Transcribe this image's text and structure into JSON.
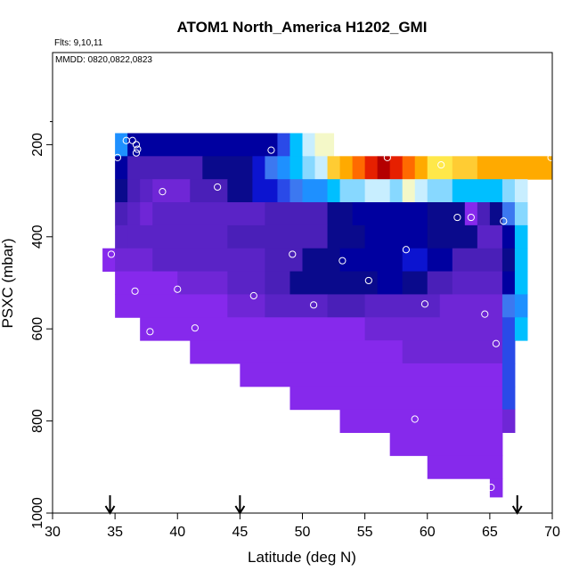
{
  "chart_data": {
    "type": "heatmap",
    "title": "ATOM1 North_America H1202_GMI",
    "annotations": [
      "Flts: 9,10,11",
      "MMDD: 0820,0822,0823"
    ],
    "xlabel": "Latitude (deg N)",
    "ylabel": "PSXC (mbar)",
    "xlim": [
      30,
      70
    ],
    "ylim": [
      1000,
      0
    ],
    "xticks": [
      30,
      35,
      40,
      45,
      50,
      55,
      60,
      65,
      70
    ],
    "yticks": [
      200,
      400,
      600,
      800,
      1000
    ],
    "cell_width_deg": 1,
    "cell_height_mbar": 50,
    "colors": {
      "violet": "#8629ec",
      "purple": "#6f26d6",
      "indigo": "#5a23c6",
      "deep_indigo": "#4a1fb8",
      "dark_navy": "#0a0a8c",
      "navy": "#0000a0",
      "blue": "#0c14d0",
      "bright_blue": "#2a4ae8",
      "azure": "#1e90ff",
      "royal": "#3c78f0",
      "sky": "#00bfff",
      "light_sky": "#87d8ff",
      "pale_blue": "#c8eeff",
      "cream": "#f4f8c8",
      "yellow": "#ffe84a",
      "gold": "#ffcc33",
      "orange": "#ffaa00",
      "dark_orange": "#ff6a00",
      "red": "#e62000",
      "dark_red": "#b40000"
    },
    "cell_rows": [
      {
        "pres_top": 175,
        "pres_bottom": 225,
        "segments": [
          {
            "lat_start": 35,
            "lat_end": 36,
            "color": "azure"
          },
          {
            "lat_start": 36,
            "lat_end": 48,
            "color": "navy"
          },
          {
            "lat_start": 48,
            "lat_end": 49,
            "color": "bright_blue"
          },
          {
            "lat_start": 49,
            "lat_end": 50,
            "color": "sky"
          },
          {
            "lat_start": 50,
            "lat_end": 51,
            "color": "pale_blue"
          },
          {
            "lat_start": 51,
            "lat_end": 52.5,
            "color": "cream"
          }
        ]
      },
      {
        "pres_top": 225,
        "pres_bottom": 275,
        "segments": [
          {
            "lat_start": 35,
            "lat_end": 36,
            "color": "navy"
          },
          {
            "lat_start": 36,
            "lat_end": 42,
            "color": "deep_indigo"
          },
          {
            "lat_start": 42,
            "lat_end": 46,
            "color": "dark_navy"
          },
          {
            "lat_start": 46,
            "lat_end": 47,
            "color": "blue"
          },
          {
            "lat_start": 47,
            "lat_end": 48,
            "color": "royal"
          },
          {
            "lat_start": 48,
            "lat_end": 49,
            "color": "azure"
          },
          {
            "lat_start": 49,
            "lat_end": 50,
            "color": "sky"
          },
          {
            "lat_start": 50,
            "lat_end": 51,
            "color": "light_sky"
          },
          {
            "lat_start": 51,
            "lat_end": 52,
            "color": "pale_blue"
          },
          {
            "lat_start": 52,
            "lat_end": 53,
            "color": "gold"
          },
          {
            "lat_start": 53,
            "lat_end": 54,
            "color": "orange"
          },
          {
            "lat_start": 54,
            "lat_end": 55,
            "color": "dark_orange"
          },
          {
            "lat_start": 55,
            "lat_end": 56,
            "color": "red"
          },
          {
            "lat_start": 56,
            "lat_end": 57,
            "color": "dark_red"
          },
          {
            "lat_start": 57,
            "lat_end": 58,
            "color": "red"
          },
          {
            "lat_start": 58,
            "lat_end": 59,
            "color": "dark_orange"
          },
          {
            "lat_start": 59,
            "lat_end": 60,
            "color": "orange"
          },
          {
            "lat_start": 60,
            "lat_end": 62,
            "color": "yellow"
          },
          {
            "lat_start": 62,
            "lat_end": 64,
            "color": "gold"
          },
          {
            "lat_start": 64,
            "lat_end": 70,
            "color": "orange"
          }
        ]
      },
      {
        "pres_top": 275,
        "pres_bottom": 325,
        "segments": [
          {
            "lat_start": 35,
            "lat_end": 36,
            "color": "dark_navy"
          },
          {
            "lat_start": 36,
            "lat_end": 37,
            "color": "deep_indigo"
          },
          {
            "lat_start": 37,
            "lat_end": 38,
            "color": "indigo"
          },
          {
            "lat_start": 38,
            "lat_end": 41,
            "color": "purple"
          },
          {
            "lat_start": 41,
            "lat_end": 44,
            "color": "deep_indigo"
          },
          {
            "lat_start": 44,
            "lat_end": 46,
            "color": "dark_navy"
          },
          {
            "lat_start": 46,
            "lat_end": 48,
            "color": "blue"
          },
          {
            "lat_start": 48,
            "lat_end": 49,
            "color": "bright_blue"
          },
          {
            "lat_start": 49,
            "lat_end": 50,
            "color": "royal"
          },
          {
            "lat_start": 50,
            "lat_end": 52,
            "color": "azure"
          },
          {
            "lat_start": 52,
            "lat_end": 53,
            "color": "sky"
          },
          {
            "lat_start": 53,
            "lat_end": 55,
            "color": "light_sky"
          },
          {
            "lat_start": 55,
            "lat_end": 57,
            "color": "pale_blue"
          },
          {
            "lat_start": 57,
            "lat_end": 58,
            "color": "light_sky"
          },
          {
            "lat_start": 58,
            "lat_end": 59,
            "color": "cream"
          },
          {
            "lat_start": 59,
            "lat_end": 60,
            "color": "pale_blue"
          },
          {
            "lat_start": 60,
            "lat_end": 62,
            "color": "light_sky"
          },
          {
            "lat_start": 62,
            "lat_end": 66,
            "color": "sky"
          },
          {
            "lat_start": 66,
            "lat_end": 67,
            "color": "light_sky"
          },
          {
            "lat_start": 67,
            "lat_end": 68,
            "color": "pale_blue"
          }
        ]
      },
      {
        "pres_top": 325,
        "pres_bottom": 375,
        "segments": [
          {
            "lat_start": 35,
            "lat_end": 36,
            "color": "deep_indigo"
          },
          {
            "lat_start": 36,
            "lat_end": 37,
            "color": "indigo"
          },
          {
            "lat_start": 37,
            "lat_end": 38,
            "color": "purple"
          },
          {
            "lat_start": 38,
            "lat_end": 47,
            "color": "indigo"
          },
          {
            "lat_start": 47,
            "lat_end": 52,
            "color": "deep_indigo"
          },
          {
            "lat_start": 52,
            "lat_end": 54,
            "color": "dark_navy"
          },
          {
            "lat_start": 54,
            "lat_end": 60,
            "color": "navy"
          },
          {
            "lat_start": 60,
            "lat_end": 63,
            "color": "dark_navy"
          },
          {
            "lat_start": 63,
            "lat_end": 64,
            "color": "violet"
          },
          {
            "lat_start": 64,
            "lat_end": 65,
            "color": "deep_indigo"
          },
          {
            "lat_start": 65,
            "lat_end": 66,
            "color": "dark_navy"
          },
          {
            "lat_start": 66,
            "lat_end": 67,
            "color": "royal"
          },
          {
            "lat_start": 67,
            "lat_end": 68,
            "color": "light_sky"
          }
        ]
      },
      {
        "pres_top": 375,
        "pres_bottom": 425,
        "segments": [
          {
            "lat_start": 35,
            "lat_end": 36,
            "color": "indigo"
          },
          {
            "lat_start": 36,
            "lat_end": 44,
            "color": "indigo"
          },
          {
            "lat_start": 44,
            "lat_end": 52,
            "color": "deep_indigo"
          },
          {
            "lat_start": 52,
            "lat_end": 55,
            "color": "dark_navy"
          },
          {
            "lat_start": 55,
            "lat_end": 60,
            "color": "navy"
          },
          {
            "lat_start": 60,
            "lat_end": 64,
            "color": "dark_navy"
          },
          {
            "lat_start": 64,
            "lat_end": 66,
            "color": "indigo"
          },
          {
            "lat_start": 66,
            "lat_end": 67,
            "color": "navy"
          },
          {
            "lat_start": 67,
            "lat_end": 68,
            "color": "sky"
          }
        ]
      },
      {
        "pres_top": 425,
        "pres_bottom": 475,
        "segments": [
          {
            "lat_start": 34,
            "lat_end": 35,
            "color": "violet"
          },
          {
            "lat_start": 35,
            "lat_end": 38,
            "color": "purple"
          },
          {
            "lat_start": 38,
            "lat_end": 47,
            "color": "indigo"
          },
          {
            "lat_start": 47,
            "lat_end": 50,
            "color": "deep_indigo"
          },
          {
            "lat_start": 50,
            "lat_end": 53,
            "color": "dark_navy"
          },
          {
            "lat_start": 53,
            "lat_end": 58,
            "color": "navy"
          },
          {
            "lat_start": 58,
            "lat_end": 60,
            "color": "blue"
          },
          {
            "lat_start": 60,
            "lat_end": 62,
            "color": "navy"
          },
          {
            "lat_start": 62,
            "lat_end": 66,
            "color": "deep_indigo"
          },
          {
            "lat_start": 66,
            "lat_end": 67,
            "color": "dark_navy"
          },
          {
            "lat_start": 67,
            "lat_end": 68,
            "color": "sky"
          }
        ]
      },
      {
        "pres_top": 475,
        "pres_bottom": 525,
        "segments": [
          {
            "lat_start": 35,
            "lat_end": 40,
            "color": "violet"
          },
          {
            "lat_start": 40,
            "lat_end": 44,
            "color": "purple"
          },
          {
            "lat_start": 44,
            "lat_end": 47,
            "color": "indigo"
          },
          {
            "lat_start": 47,
            "lat_end": 49,
            "color": "deep_indigo"
          },
          {
            "lat_start": 49,
            "lat_end": 56,
            "color": "dark_navy"
          },
          {
            "lat_start": 56,
            "lat_end": 58,
            "color": "navy"
          },
          {
            "lat_start": 58,
            "lat_end": 60,
            "color": "dark_navy"
          },
          {
            "lat_start": 60,
            "lat_end": 62,
            "color": "deep_indigo"
          },
          {
            "lat_start": 62,
            "lat_end": 66,
            "color": "indigo"
          },
          {
            "lat_start": 66,
            "lat_end": 67,
            "color": "navy"
          },
          {
            "lat_start": 67,
            "lat_end": 68,
            "color": "sky"
          }
        ]
      },
      {
        "pres_top": 525,
        "pres_bottom": 575,
        "segments": [
          {
            "lat_start": 35,
            "lat_end": 44,
            "color": "violet"
          },
          {
            "lat_start": 44,
            "lat_end": 47,
            "color": "purple"
          },
          {
            "lat_start": 47,
            "lat_end": 52,
            "color": "indigo"
          },
          {
            "lat_start": 52,
            "lat_end": 55,
            "color": "deep_indigo"
          },
          {
            "lat_start": 55,
            "lat_end": 61,
            "color": "indigo"
          },
          {
            "lat_start": 61,
            "lat_end": 66,
            "color": "purple"
          },
          {
            "lat_start": 66,
            "lat_end": 67,
            "color": "royal"
          },
          {
            "lat_start": 67,
            "lat_end": 68,
            "color": "azure"
          }
        ]
      },
      {
        "pres_top": 575,
        "pres_bottom": 625,
        "segments": [
          {
            "lat_start": 37,
            "lat_end": 55,
            "color": "violet"
          },
          {
            "lat_start": 55,
            "lat_end": 66,
            "color": "purple"
          },
          {
            "lat_start": 66,
            "lat_end": 67,
            "color": "bright_blue"
          },
          {
            "lat_start": 67,
            "lat_end": 68,
            "color": "sky"
          }
        ]
      },
      {
        "pres_top": 625,
        "pres_bottom": 675,
        "segments": [
          {
            "lat_start": 41,
            "lat_end": 58,
            "color": "violet"
          },
          {
            "lat_start": 58,
            "lat_end": 66,
            "color": "purple"
          },
          {
            "lat_start": 66,
            "lat_end": 67,
            "color": "bright_blue"
          }
        ]
      },
      {
        "pres_top": 675,
        "pres_bottom": 725,
        "segments": [
          {
            "lat_start": 45,
            "lat_end": 50,
            "color": "violet"
          },
          {
            "lat_start": 50,
            "lat_end": 66,
            "color": "violet"
          },
          {
            "lat_start": 66,
            "lat_end": 67,
            "color": "bright_blue"
          }
        ]
      },
      {
        "pres_top": 725,
        "pres_bottom": 775,
        "segments": [
          {
            "lat_start": 49,
            "lat_end": 66,
            "color": "violet"
          },
          {
            "lat_start": 66,
            "lat_end": 67,
            "color": "bright_blue"
          }
        ]
      },
      {
        "pres_top": 775,
        "pres_bottom": 825,
        "segments": [
          {
            "lat_start": 53,
            "lat_end": 66,
            "color": "violet"
          },
          {
            "lat_start": 66,
            "lat_end": 67,
            "color": "purple"
          }
        ]
      },
      {
        "pres_top": 825,
        "pres_bottom": 875,
        "segments": [
          {
            "lat_start": 57,
            "lat_end": 66,
            "color": "violet"
          }
        ]
      },
      {
        "pres_top": 875,
        "pres_bottom": 925,
        "segments": [
          {
            "lat_start": 60,
            "lat_end": 66,
            "color": "violet"
          }
        ]
      },
      {
        "pres_top": 925,
        "pres_bottom": 965,
        "segments": [
          {
            "lat_start": 65,
            "lat_end": 66,
            "color": "violet"
          }
        ]
      }
    ],
    "points": [
      {
        "lat": 35.2,
        "pres": 228
      },
      {
        "lat": 35.9,
        "pres": 191
      },
      {
        "lat": 36.4,
        "pres": 191
      },
      {
        "lat": 36.7,
        "pres": 200
      },
      {
        "lat": 36.8,
        "pres": 210
      },
      {
        "lat": 36.7,
        "pres": 218
      },
      {
        "lat": 34.7,
        "pres": 438
      },
      {
        "lat": 36.6,
        "pres": 518
      },
      {
        "lat": 37.8,
        "pres": 606
      },
      {
        "lat": 38.8,
        "pres": 302
      },
      {
        "lat": 40.0,
        "pres": 514
      },
      {
        "lat": 41.4,
        "pres": 598
      },
      {
        "lat": 43.2,
        "pres": 292
      },
      {
        "lat": 46.1,
        "pres": 528
      },
      {
        "lat": 47.5,
        "pres": 212
      },
      {
        "lat": 49.2,
        "pres": 438
      },
      {
        "lat": 50.9,
        "pres": 548
      },
      {
        "lat": 53.2,
        "pres": 452
      },
      {
        "lat": 55.3,
        "pres": 495
      },
      {
        "lat": 56.8,
        "pres": 228
      },
      {
        "lat": 58.3,
        "pres": 428
      },
      {
        "lat": 59.8,
        "pres": 546
      },
      {
        "lat": 61.1,
        "pres": 244
      },
      {
        "lat": 62.4,
        "pres": 358
      },
      {
        "lat": 63.5,
        "pres": 358
      },
      {
        "lat": 64.6,
        "pres": 568
      },
      {
        "lat": 65.5,
        "pres": 632
      },
      {
        "lat": 66.1,
        "pres": 366
      },
      {
        "lat": 65.1,
        "pres": 944
      },
      {
        "lat": 59.0,
        "pres": 796
      },
      {
        "lat": 69.9,
        "pres": 228
      }
    ],
    "flight_arrows_lat": [
      34.6,
      45.0,
      67.2
    ]
  }
}
